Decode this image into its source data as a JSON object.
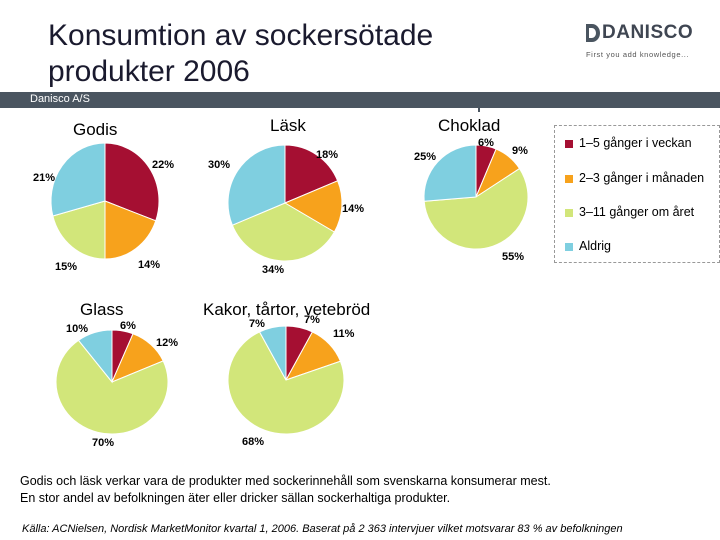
{
  "slide": {
    "title_line1": "Konsumtion av sockersötade",
    "title_line2": "produkter 2006",
    "company_band": "Danisco A/S",
    "logo_text": "DANISCO",
    "logo_tagline": "First you add knowledge...",
    "body_line1": "Godis och läsk verkar vara de produkter med sockerinnehåll som svenskarna konsumerar mest.",
    "body_line2": "En stor andel av befolkningen äter eller dricker sällan sockerhaltiga produkter.",
    "source": "Källa: ACNielsen, Nordisk MarketMonitor kvartal 1, 2006. Baserat på 2 363  intervjuer vilket motsvarar 83 % av befolkningen"
  },
  "legend": {
    "items": [
      {
        "label": "1–5 gånger i veckan",
        "color": "#a50f32"
      },
      {
        "label": "2–3 gånger i månaden",
        "color": "#f7a21c"
      },
      {
        "label": "3–11 gånger om året",
        "color": "#d2e67a"
      },
      {
        "label": "Aldrig",
        "color": "#7fcfe0"
      }
    ]
  },
  "chart_data": [
    {
      "type": "pie",
      "title": "Godis",
      "categories": [
        "1–5 gånger i veckan",
        "2–3 gånger i månaden",
        "3–11 gånger om året",
        "Aldrig"
      ],
      "values": [
        22,
        14,
        15,
        21
      ],
      "labels": [
        "22%",
        "14%",
        "15%",
        "21%"
      ]
    },
    {
      "type": "pie",
      "title": "Läsk",
      "categories": [
        "1–5 gånger i veckan",
        "2–3 gånger i månaden",
        "3–11 gånger om året",
        "Aldrig"
      ],
      "values": [
        18,
        14,
        34,
        30
      ],
      "labels": [
        "18%",
        "14%",
        "34%",
        "30%"
      ]
    },
    {
      "type": "pie",
      "title": "Choklad",
      "categories": [
        "1–5 gånger i veckan",
        "2–3 gånger i månaden",
        "3–11 gånger om året",
        "Aldrig"
      ],
      "values": [
        6,
        9,
        55,
        25
      ],
      "labels": [
        "6%",
        "9%",
        "55%",
        "25%"
      ]
    },
    {
      "type": "pie",
      "title": "Glass",
      "categories": [
        "1–5 gånger i veckan",
        "2–3 gånger i månaden",
        "3–11 gånger om året",
        "Aldrig"
      ],
      "values": [
        6,
        12,
        70,
        10
      ],
      "labels": [
        "6%",
        "12%",
        "70%",
        "10%"
      ]
    },
    {
      "type": "pie",
      "title": "Kakor, tårtor, vetebröd",
      "categories": [
        "1–5 gånger i veckan",
        "2–3 gånger i månaden",
        "3–11 gånger om året",
        "Aldrig"
      ],
      "values": [
        7,
        11,
        68,
        7
      ],
      "labels": [
        "7%",
        "11%",
        "68%",
        "7%"
      ]
    }
  ]
}
